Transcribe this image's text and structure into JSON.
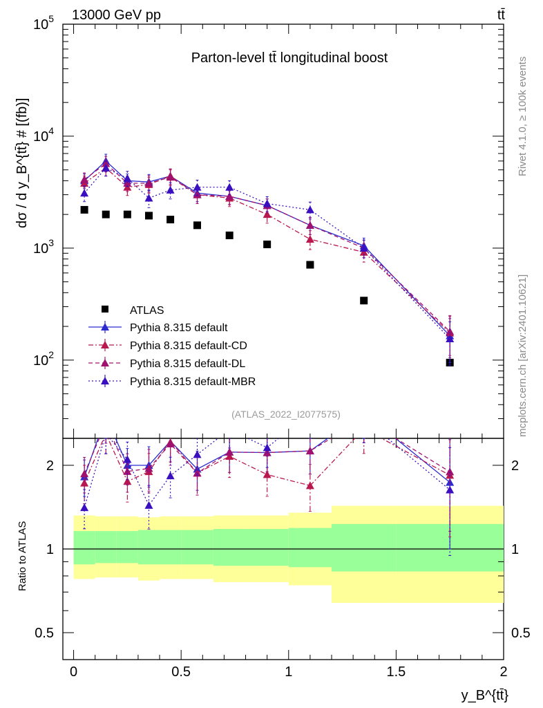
{
  "header": {
    "left_label": "13000 GeV pp",
    "right_label": "tt̄",
    "side_label_top": "Rivet 4.1.0, ≥ 100k events",
    "side_label_bottom": "mcplots.cern.ch [arXiv:2401.10621]"
  },
  "chart_data": {
    "type": "scatter",
    "title": "Parton-level tt̄ longitudinal boost",
    "analysis_tag": "(ATLAS_2022_I2077575)",
    "ylabel_main": "dσ / d y_B^{tt̄} # [(fb)]",
    "ylabel_ratio": "Ratio to ATLAS",
    "xlabel": "y_B^{tt̄}",
    "xlim": [
      -0.05,
      2.0
    ],
    "x_ticks": [
      {
        "v": 0,
        "label": "0"
      },
      {
        "v": 0.5,
        "label": "0.5"
      },
      {
        "v": 1,
        "label": "1"
      },
      {
        "v": 1.5,
        "label": "1.5"
      },
      {
        "v": 2,
        "label": "2"
      }
    ],
    "ylim_main": [
      20,
      100000
    ],
    "y_ticks_main": [
      {
        "v": 100,
        "base": "10",
        "exp": "2"
      },
      {
        "v": 1000,
        "base": "10",
        "exp": "3"
      },
      {
        "v": 10000,
        "base": "10",
        "exp": "4"
      },
      {
        "v": 100000,
        "base": "10",
        "exp": "5"
      }
    ],
    "ylim_ratio": [
      0.4,
      2.5
    ],
    "y_ticks_ratio": [
      {
        "v": 0.5,
        "label": "0.5"
      },
      {
        "v": 1,
        "label": "1"
      },
      {
        "v": 2,
        "label": "2"
      }
    ],
    "bins": [
      {
        "x": 0.05,
        "lo": 0.0,
        "hi": 0.1
      },
      {
        "x": 0.15,
        "lo": 0.1,
        "hi": 0.2
      },
      {
        "x": 0.25,
        "lo": 0.2,
        "hi": 0.3
      },
      {
        "x": 0.35,
        "lo": 0.3,
        "hi": 0.4
      },
      {
        "x": 0.45,
        "lo": 0.4,
        "hi": 0.5
      },
      {
        "x": 0.575,
        "lo": 0.5,
        "hi": 0.65
      },
      {
        "x": 0.725,
        "lo": 0.65,
        "hi": 0.8
      },
      {
        "x": 0.9,
        "lo": 0.8,
        "hi": 1.0
      },
      {
        "x": 1.1,
        "lo": 1.0,
        "hi": 1.2
      },
      {
        "x": 1.35,
        "lo": 1.2,
        "hi": 1.5
      },
      {
        "x": 1.75,
        "lo": 1.5,
        "hi": 2.0
      }
    ],
    "data": {
      "name": "ATLAS",
      "values": [
        2200,
        2000,
        2000,
        1950,
        1800,
        1600,
        1300,
        1080,
        710,
        340,
        95
      ],
      "band_green": [
        [
          0.88,
          1.16
        ],
        [
          0.89,
          1.16
        ],
        [
          0.89,
          1.16
        ],
        [
          0.88,
          1.17
        ],
        [
          0.88,
          1.17
        ],
        [
          0.88,
          1.17
        ],
        [
          0.87,
          1.18
        ],
        [
          0.87,
          1.18
        ],
        [
          0.86,
          1.19
        ],
        [
          0.83,
          1.23
        ],
        [
          0.83,
          1.23
        ]
      ],
      "band_yellow": [
        [
          0.78,
          1.32
        ],
        [
          0.79,
          1.31
        ],
        [
          0.79,
          1.31
        ],
        [
          0.77,
          1.3
        ],
        [
          0.78,
          1.31
        ],
        [
          0.78,
          1.31
        ],
        [
          0.76,
          1.32
        ],
        [
          0.76,
          1.32
        ],
        [
          0.74,
          1.35
        ],
        [
          0.64,
          1.43
        ],
        [
          0.64,
          1.43
        ]
      ]
    },
    "series": [
      {
        "name": "Pythia 8.315 default",
        "color": "#2a2ad0",
        "dash": "",
        "values": [
          4000,
          6000,
          4000,
          3900,
          4400,
          3100,
          2900,
          2400,
          1600,
          1050,
          165
        ],
        "errors": [
          600,
          900,
          600,
          650,
          700,
          500,
          450,
          350,
          280,
          180,
          70
        ]
      },
      {
        "name": "Pythia 8.315 default-CD",
        "color": "#b8184e",
        "dash": "7,3,2,3",
        "values": [
          3800,
          5200,
          3500,
          3700,
          4400,
          3000,
          2800,
          2000,
          1200,
          920,
          175
        ],
        "errors": [
          600,
          800,
          550,
          600,
          700,
          500,
          450,
          330,
          230,
          170,
          70
        ]
      },
      {
        "name": "Pythia 8.315 default-DL",
        "color": "#a0106e",
        "dash": "6,4",
        "values": [
          4100,
          5700,
          3800,
          3800,
          4300,
          3000,
          2900,
          2400,
          1600,
          1000,
          180
        ],
        "errors": [
          600,
          900,
          600,
          650,
          700,
          500,
          450,
          350,
          280,
          180,
          70
        ]
      },
      {
        "name": "Pythia 8.315 default-MBR",
        "color": "#3a0fc0",
        "dash": "2,3",
        "values": [
          3100,
          5200,
          4200,
          2800,
          3300,
          3500,
          3500,
          2500,
          2200,
          1000,
          155
        ],
        "errors": [
          500,
          800,
          650,
          500,
          550,
          550,
          500,
          380,
          380,
          180,
          65
        ]
      }
    ]
  }
}
